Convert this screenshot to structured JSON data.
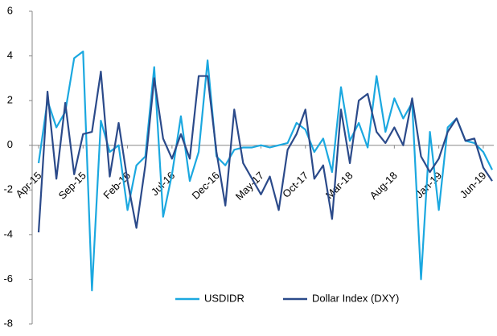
{
  "chart_data": {
    "type": "line",
    "categories": [
      "Apr-15",
      null,
      null,
      null,
      null,
      "Sep-15",
      null,
      null,
      null,
      null,
      "Feb-16",
      null,
      null,
      null,
      null,
      "Jul-16",
      null,
      null,
      null,
      null,
      "Dec-16",
      null,
      null,
      null,
      null,
      "May-17",
      null,
      null,
      null,
      null,
      "Oct-17",
      null,
      null,
      null,
      null,
      "Mar-18",
      null,
      null,
      null,
      null,
      "Aug-18",
      null,
      null,
      null,
      null,
      "Jan-19",
      null,
      null,
      null,
      null,
      "Jun-19",
      null
    ],
    "series": [
      {
        "name": "USDIDR",
        "color": "#1ba8e0",
        "values": [
          -0.8,
          2.0,
          0.8,
          1.5,
          3.9,
          4.2,
          -6.5,
          1.1,
          -0.3,
          0.0,
          -2.9,
          -0.9,
          -0.5,
          3.5,
          -3.2,
          -1.3,
          1.3,
          -1.6,
          -0.3,
          3.8,
          -0.5,
          -0.9,
          -0.2,
          -0.1,
          -0.1,
          0.0,
          -0.1,
          0.0,
          0.1,
          1.0,
          0.7,
          -0.3,
          0.3,
          -1.2,
          2.6,
          0.2,
          1.0,
          -0.1,
          3.1,
          0.6,
          2.1,
          1.2,
          1.9,
          -6.0,
          0.6,
          -2.9,
          0.8,
          1.2,
          0.2,
          0.1,
          -0.3,
          -1.1
        ]
      },
      {
        "name": "Dollar Index (DXY)",
        "color": "#2b4a8a",
        "values": [
          -3.9,
          2.4,
          -1.5,
          1.9,
          -1.3,
          0.5,
          0.6,
          3.3,
          -1.4,
          1.0,
          -1.6,
          -3.7,
          -0.9,
          3.0,
          0.3,
          -0.6,
          0.5,
          -0.6,
          3.1,
          3.1,
          -0.3,
          -2.7,
          1.6,
          -0.8,
          -1.5,
          -2.2,
          -1.4,
          -2.9,
          -0.2,
          0.5,
          1.6,
          -1.5,
          -0.9,
          -3.3,
          1.6,
          -0.8,
          2.0,
          2.3,
          0.6,
          0.1,
          0.8,
          0.0,
          2.1,
          -0.5,
          -1.2,
          -0.6,
          0.6,
          1.2,
          0.2,
          0.3,
          -1.0,
          -1.6
        ]
      }
    ],
    "ylim": [
      -8,
      6
    ],
    "yticks": [
      -8,
      -6,
      -4,
      -2,
      0,
      2,
      4,
      6
    ],
    "grid": false,
    "legend": "lower center"
  }
}
